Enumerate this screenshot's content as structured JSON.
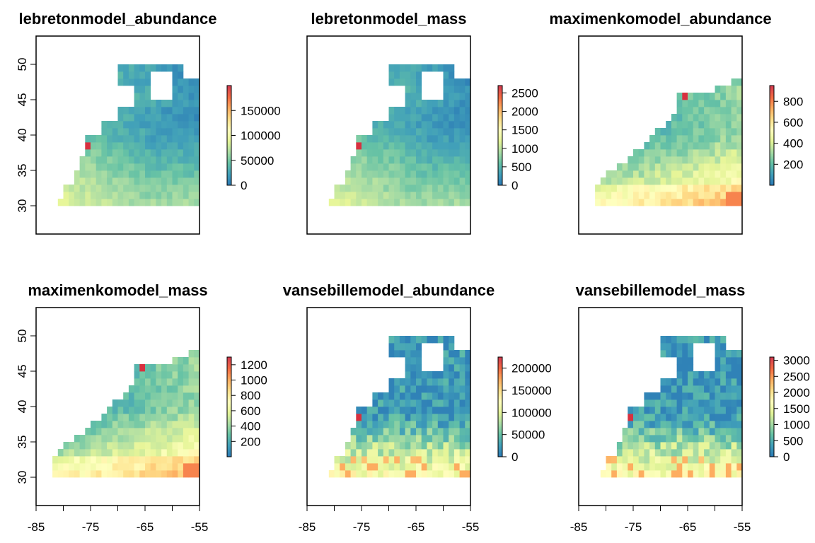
{
  "chart_data": [
    {
      "type": "heatmap",
      "title": "lebretonmodel_abundance",
      "xlim": [
        -85,
        -55
      ],
      "ylim": [
        26,
        54
      ],
      "xticks": [],
      "xtick_labels": [],
      "yticks": [
        30,
        35,
        40,
        45,
        50
      ],
      "ytick_labels": [
        "30",
        "35",
        "40",
        "45",
        "50"
      ],
      "legend": {
        "min": 0,
        "max": 200000,
        "ticks": [
          0,
          50000,
          100000,
          150000
        ],
        "tick_labels": [
          "0",
          "50000",
          "100000",
          "150000"
        ]
      },
      "pattern": "lebreton",
      "hotspot": [
        -75.5,
        38.5
      ]
    },
    {
      "type": "heatmap",
      "title": "lebretonmodel_mass",
      "xlim": [
        -85,
        -55
      ],
      "ylim": [
        26,
        54
      ],
      "xticks": [],
      "xtick_labels": [],
      "yticks": [],
      "ytick_labels": [],
      "legend": {
        "min": 0,
        "max": 2700,
        "ticks": [
          0,
          500,
          1000,
          1500,
          2000,
          2500
        ],
        "tick_labels": [
          "0",
          "500",
          "1000",
          "1500",
          "2000",
          "2500"
        ]
      },
      "pattern": "lebreton",
      "hotspot": [
        -75.5,
        38.5
      ]
    },
    {
      "type": "heatmap",
      "title": "maximenkomodel_abundance",
      "xlim": [
        -85,
        -55
      ],
      "ylim": [
        26,
        54
      ],
      "xticks": [],
      "xtick_labels": [],
      "yticks": [],
      "ytick_labels": [],
      "legend": {
        "min": 0,
        "max": 950,
        "ticks": [
          200,
          400,
          600,
          800
        ],
        "tick_labels": [
          "200",
          "400",
          "600",
          "800"
        ]
      },
      "pattern": "maximenko",
      "hotspot": [
        -65.5,
        45.5
      ]
    },
    {
      "type": "heatmap",
      "title": "maximenkomodel_mass",
      "xlim": [
        -85,
        -55
      ],
      "ylim": [
        26,
        54
      ],
      "xticks": [],
      "xtick_labels": [],
      "yticks": [
        30,
        35,
        40,
        45,
        50
      ],
      "ytick_labels": [
        "30",
        "35",
        "40",
        "45",
        "50"
      ],
      "legend": {
        "min": 0,
        "max": 1300,
        "ticks": [
          200,
          400,
          600,
          800,
          1000,
          1200
        ],
        "tick_labels": [
          "200",
          "400",
          "600",
          "800",
          "1000",
          "1200"
        ]
      },
      "pattern": "maximenko",
      "hotspot": [
        -65.5,
        45.5
      ]
    },
    {
      "type": "heatmap",
      "title": "vansebillemodel_abundance",
      "xlim": [
        -85,
        -55
      ],
      "ylim": [
        26,
        54
      ],
      "xticks": [
        -85,
        -75,
        -65,
        -55
      ],
      "xtick_labels": [
        "-85",
        "-75",
        "-65",
        "-55"
      ],
      "yticks": [],
      "ytick_labels": [],
      "legend": {
        "min": 0,
        "max": 225000,
        "ticks": [
          0,
          50000,
          100000,
          150000,
          200000
        ],
        "tick_labels": [
          "0",
          "50000",
          "100000",
          "150000",
          "200000"
        ]
      },
      "pattern": "vansebille",
      "hotspot": [
        -75.5,
        38.5
      ]
    },
    {
      "type": "heatmap",
      "title": "vansebillemodel_mass",
      "xlim": [
        -85,
        -55
      ],
      "ylim": [
        26,
        54
      ],
      "xticks": [
        -85,
        -75,
        -65,
        -55
      ],
      "xtick_labels": [
        "-85",
        "-75",
        "-65",
        "-55"
      ],
      "yticks": [],
      "ytick_labels": [],
      "legend": {
        "min": 0,
        "max": 3100,
        "ticks": [
          0,
          500,
          1000,
          1500,
          2000,
          2500,
          3000
        ],
        "tick_labels": [
          "0",
          "500",
          "1000",
          "1500",
          "2000",
          "2500",
          "3000"
        ]
      },
      "pattern": "vansebille",
      "hotspot": [
        -75.5,
        38.5
      ]
    }
  ],
  "panel_x_ticks": [
    {
      "ticks": [
        -85,
        -75,
        -65,
        -55
      ],
      "tick_labels": [
        "-85",
        "-75",
        "-65",
        "-55"
      ]
    }
  ],
  "colors": {
    "palette": [
      "#2c7bb6",
      "#41a0b9",
      "#66c2a5",
      "#abdda4",
      "#e6f598",
      "#ffffbf",
      "#fee08b",
      "#fdae61",
      "#f46d43",
      "#d53e4f"
    ],
    "hotspot": "#d7303f",
    "ocean_low": "#2c7bb6"
  }
}
